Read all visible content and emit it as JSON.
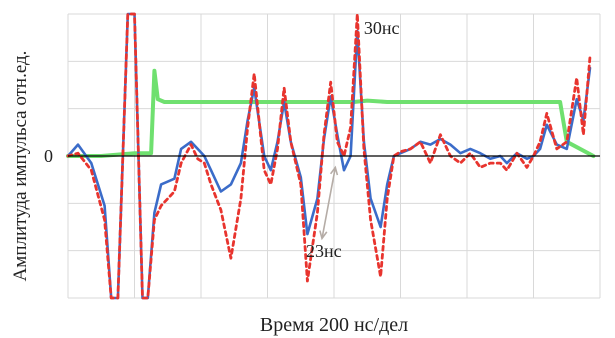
{
  "chart_data": {
    "type": "line",
    "title": "",
    "xlabel": "Время 200 нс/дел",
    "ylabel": "Амплитуда импульса отн.ед.",
    "x_tick_label_zero": "0",
    "grid": true,
    "xlim": [
      0,
      8
    ],
    "ylim": [
      -1.0,
      1.0
    ],
    "x_divisions": 8,
    "y_divisions": 6,
    "annotations": [
      {
        "text": "30нс",
        "x": 4.45,
        "y": 0.86
      },
      {
        "text": "23нс",
        "x": 4.18,
        "y": -0.67
      }
    ],
    "series": [
      {
        "name": "",
        "color": "#6fe06f",
        "style": "solid",
        "x": [
          0.0,
          0.5,
          1.0,
          1.25,
          1.3,
          1.35,
          1.45,
          1.6,
          2.0,
          2.5,
          3.0,
          3.5,
          4.0,
          4.05,
          4.1,
          4.15,
          4.2,
          4.3,
          4.5,
          4.8,
          5.2,
          6.0,
          7.0,
          7.4,
          7.5,
          7.9
        ],
        "y": [
          0.0,
          0.0,
          0.02,
          0.02,
          0.6,
          0.4,
          0.38,
          0.38,
          0.38,
          0.38,
          0.38,
          0.38,
          0.38,
          0.38,
          0.38,
          0.38,
          0.38,
          0.38,
          0.39,
          0.38,
          0.38,
          0.38,
          0.38,
          0.38,
          0.1,
          0.0
        ]
      },
      {
        "name": "",
        "color": "#3b6cc9",
        "style": "solid",
        "x": [
          0.0,
          0.15,
          0.35,
          0.55,
          0.65,
          0.75,
          0.9,
          1.0,
          1.12,
          1.2,
          1.3,
          1.4,
          1.5,
          1.6,
          1.7,
          1.85,
          1.95,
          2.05,
          2.15,
          2.3,
          2.45,
          2.6,
          2.7,
          2.8,
          2.95,
          3.05,
          3.15,
          3.25,
          3.35,
          3.5,
          3.6,
          3.75,
          3.85,
          3.95,
          4.05,
          4.15,
          4.25,
          4.35,
          4.45,
          4.55,
          4.7,
          4.8,
          4.9,
          5.0,
          5.15,
          5.3,
          5.45,
          5.6,
          5.75,
          5.9,
          6.05,
          6.2,
          6.35,
          6.5,
          6.6,
          6.75,
          6.9,
          7.0,
          7.1,
          7.2,
          7.35,
          7.5,
          7.65,
          7.75,
          7.85
        ],
        "y": [
          0.0,
          0.08,
          -0.05,
          -0.35,
          -1.0,
          -1.0,
          1.0,
          1.0,
          -1.0,
          -1.0,
          -0.4,
          -0.2,
          -0.18,
          -0.16,
          0.05,
          0.1,
          0.05,
          0.0,
          -0.1,
          -0.25,
          -0.2,
          -0.05,
          0.25,
          0.48,
          0.0,
          -0.1,
          0.1,
          0.38,
          0.1,
          -0.15,
          -0.55,
          -0.3,
          0.12,
          0.42,
          0.15,
          -0.1,
          0.0,
          0.88,
          0.1,
          -0.3,
          -0.5,
          -0.2,
          0.0,
          0.02,
          0.05,
          0.1,
          0.08,
          0.12,
          0.08,
          0.02,
          0.05,
          0.02,
          -0.02,
          0.0,
          -0.05,
          0.02,
          -0.02,
          0.0,
          0.05,
          0.22,
          0.08,
          0.05,
          0.4,
          0.25,
          0.62
        ]
      },
      {
        "name": "",
        "color": "#e8342e",
        "style": "dotted",
        "x": [
          0.0,
          0.15,
          0.35,
          0.55,
          0.65,
          0.75,
          0.9,
          1.0,
          1.12,
          1.2,
          1.3,
          1.4,
          1.5,
          1.6,
          1.7,
          1.85,
          1.95,
          2.05,
          2.15,
          2.3,
          2.45,
          2.6,
          2.7,
          2.8,
          2.95,
          3.05,
          3.15,
          3.25,
          3.35,
          3.5,
          3.6,
          3.75,
          3.85,
          3.95,
          4.05,
          4.15,
          4.25,
          4.35,
          4.45,
          4.55,
          4.7,
          4.8,
          4.9,
          5.0,
          5.15,
          5.3,
          5.45,
          5.6,
          5.75,
          5.9,
          6.05,
          6.2,
          6.35,
          6.5,
          6.6,
          6.75,
          6.9,
          7.0,
          7.1,
          7.2,
          7.35,
          7.5,
          7.65,
          7.75,
          7.85
        ],
        "y": [
          0.0,
          0.02,
          -0.1,
          -0.45,
          -1.0,
          -1.0,
          1.0,
          1.0,
          -1.0,
          -1.0,
          -0.45,
          -0.35,
          -0.3,
          -0.25,
          -0.05,
          0.08,
          -0.02,
          -0.05,
          -0.2,
          -0.38,
          -0.72,
          -0.3,
          0.2,
          0.58,
          -0.1,
          -0.2,
          0.05,
          0.48,
          0.1,
          -0.2,
          -0.88,
          -0.4,
          0.15,
          0.52,
          0.1,
          0.0,
          0.2,
          1.0,
          0.05,
          -0.45,
          -0.85,
          -0.3,
          0.0,
          0.03,
          0.05,
          0.1,
          -0.05,
          0.15,
          0.0,
          -0.05,
          0.02,
          -0.08,
          -0.05,
          -0.05,
          -0.1,
          0.02,
          -0.08,
          0.0,
          0.1,
          0.3,
          0.05,
          0.1,
          0.55,
          0.15,
          0.7
        ]
      }
    ]
  }
}
